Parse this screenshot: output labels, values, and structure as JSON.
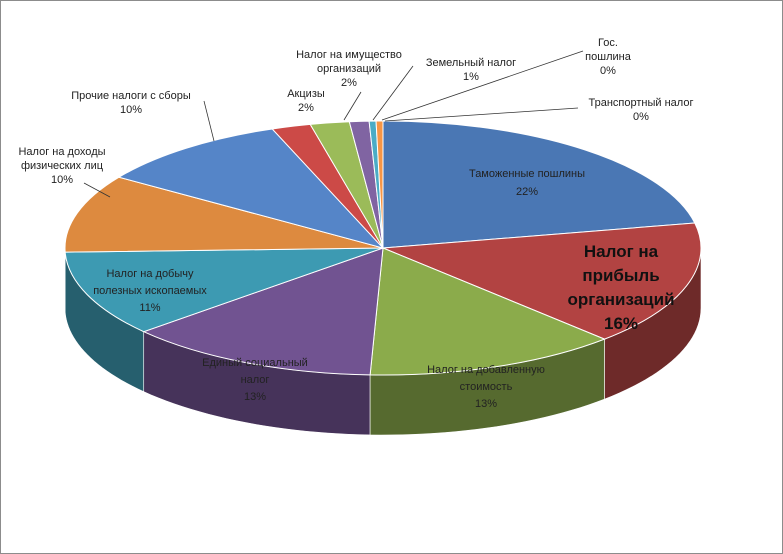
{
  "chart_data": {
    "type": "pie",
    "title": "",
    "three_d": true,
    "legend": "none",
    "slices": [
      {
        "name": "Таможенные пошлины",
        "label_lines": [
          "Таможенные пошлины",
          "22%"
        ],
        "value": 22,
        "color": "#4a77b4"
      },
      {
        "name": "Налог на прибыль организаций",
        "label_lines": [
          "Налог на",
          "прибыль",
          "организаций",
          "16%"
        ],
        "value": 16,
        "color": "#b24342"
      },
      {
        "name": "Налог на добавленную стоимость",
        "label_lines": [
          "Налог на добавленную",
          "стоимость",
          "13%"
        ],
        "value": 13,
        "color": "#8bab4b"
      },
      {
        "name": "Единый социальный налог",
        "label_lines": [
          "Единый социальный",
          "налог",
          "13%"
        ],
        "value": 13,
        "color": "#715391"
      },
      {
        "name": "Налог на добычу полезных ископаемых",
        "label_lines": [
          "Налог на добычу",
          "полезных ископаемых",
          "11%"
        ],
        "value": 11,
        "color": "#3d9ab2"
      },
      {
        "name": "Налог на доходы физических лиц",
        "label_lines": [
          "Налог на доходы",
          "физических лиц",
          "10%"
        ],
        "value": 10,
        "color": "#dd8a3f"
      },
      {
        "name": "Прочие налоги с сборы",
        "label_lines": [
          "Прочие налоги с сборы",
          "10%"
        ],
        "value": 10,
        "color": "#5585c8"
      },
      {
        "name": "Акцизы",
        "label_lines": [
          "Акцизы",
          "2%"
        ],
        "value": 2,
        "color": "#cc4a47"
      },
      {
        "name": "Налог на имущество организаций",
        "label_lines": [
          "Налог на имущество",
          "организаций",
          "2%"
        ],
        "value": 2,
        "color": "#9bbb59"
      },
      {
        "name": "Земельный налог",
        "label_lines": [
          "Земельный налог",
          "1%"
        ],
        "value": 1,
        "color": "#8064a2"
      },
      {
        "name": "Гос. пошлина",
        "label_lines": [
          "Гос.",
          "пошлина",
          "0%"
        ],
        "value": 0.35,
        "color": "#4bacc6"
      },
      {
        "name": "Транспортный налог",
        "label_lines": [
          "Транспортный  налог",
          "0%"
        ],
        "value": 0.35,
        "color": "#f79646"
      }
    ]
  }
}
